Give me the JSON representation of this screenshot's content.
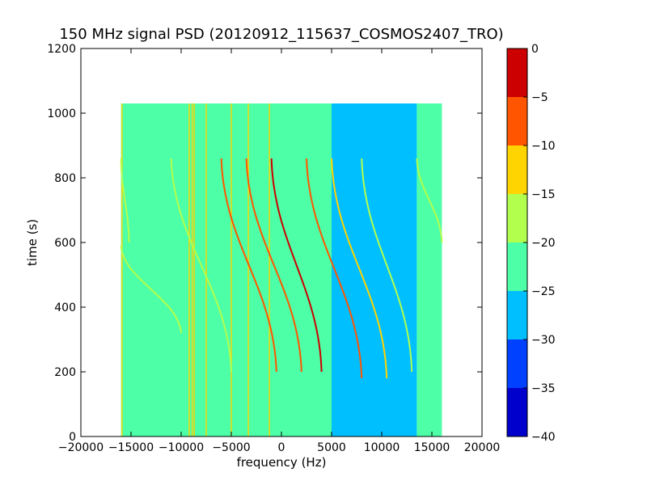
{
  "chart_data": {
    "type": "heatmap",
    "title": "150 MHz signal PSD (20120912_115637_COSMOS2407_TRO)",
    "xlabel": "frequency (Hz)",
    "ylabel": "time (s)",
    "xlim": [
      -20000,
      20000
    ],
    "ylim": [
      0,
      1200
    ],
    "x_ticks": [
      -20000,
      -15000,
      -10000,
      -5000,
      0,
      5000,
      10000,
      15000,
      20000
    ],
    "y_ticks": [
      0,
      200,
      400,
      600,
      800,
      1000,
      1200
    ],
    "data_extent": {
      "x": [
        -16000,
        16000
      ],
      "y": [
        0,
        1030
      ]
    },
    "background_levels": [
      {
        "x_range": [
          -16000,
          5000
        ],
        "level": "-25 to -20"
      },
      {
        "x_range": [
          5000,
          13500
        ],
        "level": "-30 to -25"
      },
      {
        "x_range": [
          13500,
          16000
        ],
        "level": "-25 to -20"
      }
    ],
    "vertical_lines_hz": [
      -15900,
      -9200,
      -8900,
      -8700,
      -7500,
      -5000,
      -3300,
      -1200
    ],
    "doppler_traces": [
      {
        "x_start": -16000,
        "y_start": 860,
        "x_end": -15200,
        "y_end": 600,
        "peak_level": "-20 to -15"
      },
      {
        "x_start": -16000,
        "y_start": 590,
        "x_end": -10000,
        "y_end": 320,
        "peak_level": "-20 to -15"
      },
      {
        "x_start": -11000,
        "y_start": 860,
        "x_end": -5000,
        "y_end": 200,
        "peak_level": "-20 to -15"
      },
      {
        "x_start": -6000,
        "y_start": 860,
        "x_end": -500,
        "y_end": 200,
        "peak_level": "-10 to -5"
      },
      {
        "x_start": -3500,
        "y_start": 860,
        "x_end": 2000,
        "y_end": 200,
        "peak_level": "-10 to -5"
      },
      {
        "x_start": -1000,
        "y_start": 860,
        "x_end": 4000,
        "y_end": 200,
        "peak_level": "-5 to 0"
      },
      {
        "x_start": 2500,
        "y_start": 860,
        "x_end": 8000,
        "y_end": 180,
        "peak_level": "-10 to -5"
      },
      {
        "x_start": 5000,
        "y_start": 860,
        "x_end": 10500,
        "y_end": 180,
        "peak_level": "-15 to -10"
      },
      {
        "x_start": 8000,
        "y_start": 860,
        "x_end": 13000,
        "y_end": 200,
        "peak_level": "-20 to -15"
      },
      {
        "x_start": 13500,
        "y_start": 860,
        "x_end": 16000,
        "y_end": 600,
        "peak_level": "-20 to -15"
      }
    ],
    "colorbar": {
      "range": [
        -40,
        0
      ],
      "ticks": [
        0,
        -5,
        -10,
        -15,
        -20,
        -25,
        -30,
        -35,
        -40
      ],
      "bands": [
        {
          "from": -5,
          "to": 0,
          "color": "#cc0000"
        },
        {
          "from": -10,
          "to": -5,
          "color": "#ff5500"
        },
        {
          "from": -15,
          "to": -10,
          "color": "#ffd400"
        },
        {
          "from": -20,
          "to": -15,
          "color": "#b2ff4d"
        },
        {
          "from": -25,
          "to": -20,
          "color": "#4dffa6"
        },
        {
          "from": -30,
          "to": -25,
          "color": "#00bfff"
        },
        {
          "from": -35,
          "to": -30,
          "color": "#0040ff"
        },
        {
          "from": -40,
          "to": -35,
          "color": "#0000cc"
        }
      ]
    },
    "grid": false
  }
}
